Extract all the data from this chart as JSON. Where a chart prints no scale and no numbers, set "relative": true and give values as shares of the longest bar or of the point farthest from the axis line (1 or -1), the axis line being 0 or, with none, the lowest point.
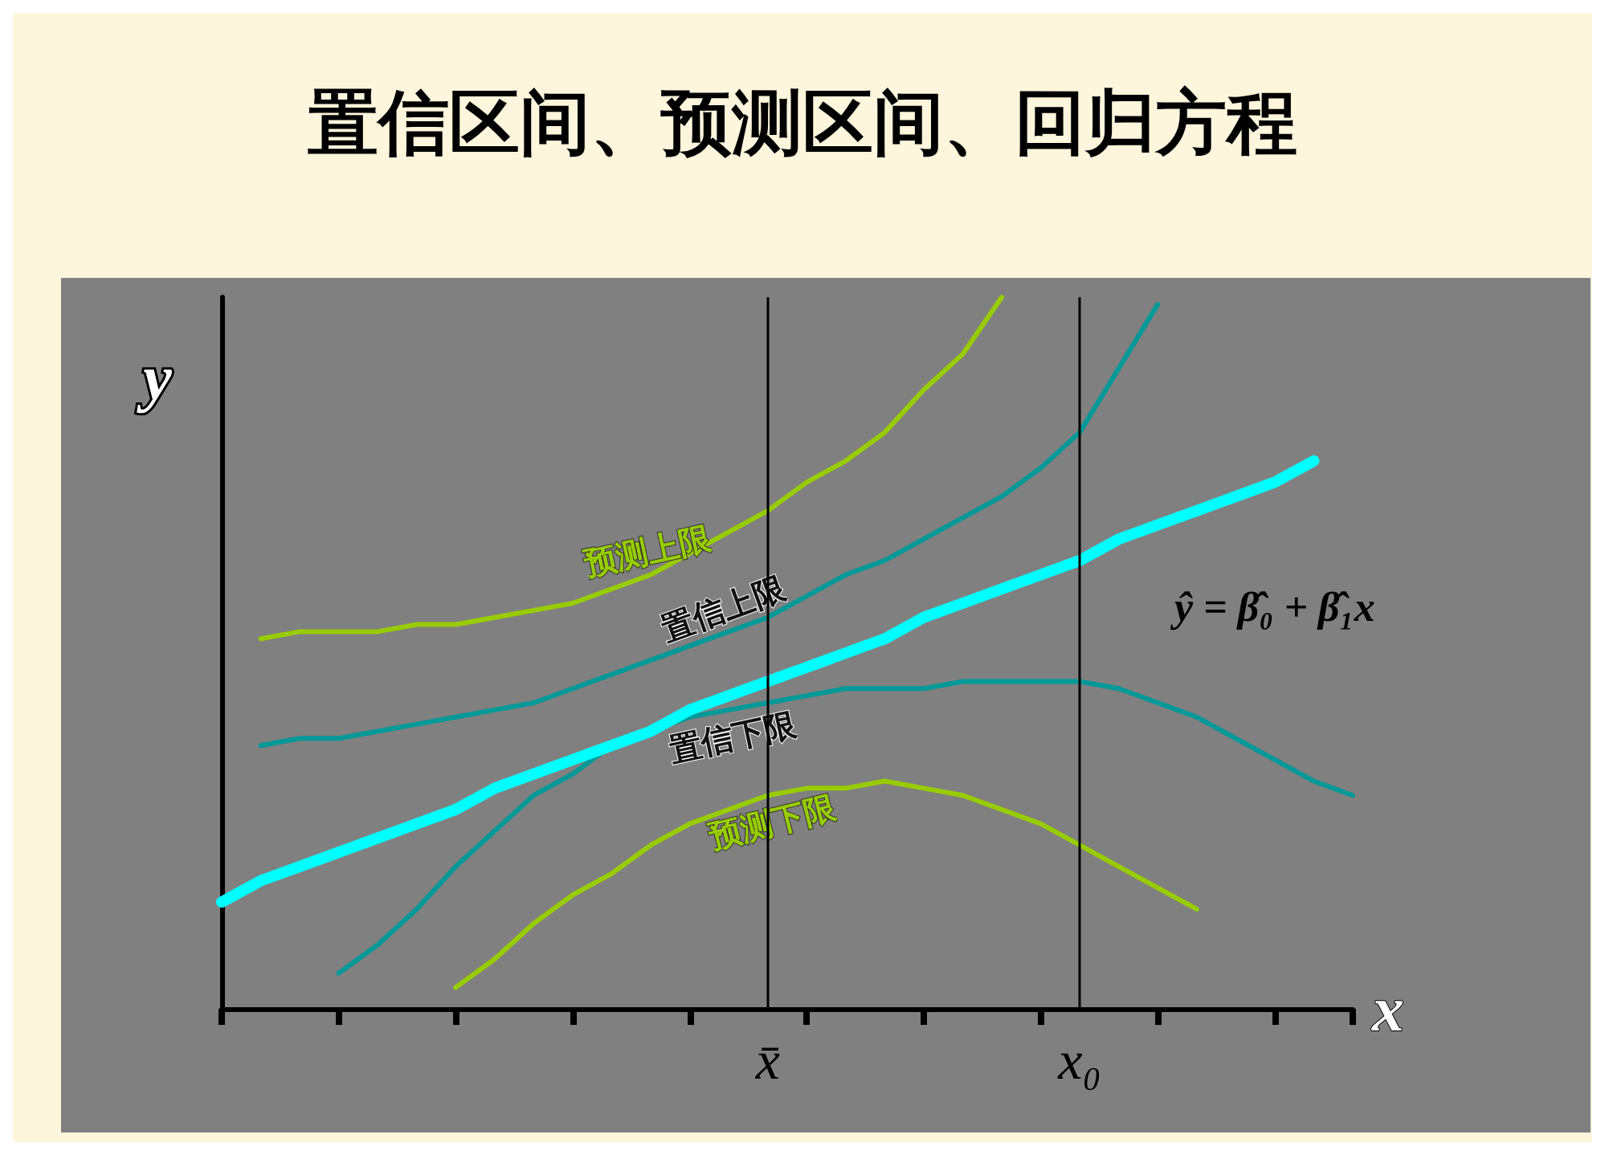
{
  "chart_data": {
    "type": "line",
    "title": "置信区间、预测区间、回归方程",
    "xlabel": "x",
    "ylabel": "y",
    "relative": true,
    "legend": false,
    "grid": false,
    "marker": "none",
    "line_style": "solid",
    "categories": [
      null,
      null,
      null,
      null,
      null,
      null,
      null,
      null,
      null,
      null,
      null,
      null,
      null,
      null,
      "x̄",
      null,
      null,
      null,
      null,
      null,
      null,
      null,
      "x₀",
      null,
      null,
      null,
      null,
      null,
      null,
      null
    ],
    "series": [
      {
        "name": "ŷ = β̂₀ + β̂₁x",
        "color": "#00ffff",
        "values": [
          0.15,
          0.18,
          0.2,
          0.22,
          0.24,
          0.26,
          0.28,
          0.31,
          0.33,
          0.35,
          0.37,
          0.39,
          0.42,
          0.44,
          0.46,
          0.48,
          0.5,
          0.52,
          0.55,
          0.57,
          0.59,
          0.61,
          0.63,
          0.66,
          0.68,
          0.7,
          0.72,
          0.74,
          0.77,
          null
        ]
      },
      {
        "name": "预测上限",
        "color": "#99cc00",
        "values": [
          null,
          0.52,
          0.53,
          0.53,
          0.53,
          0.54,
          0.54,
          0.55,
          0.56,
          0.57,
          0.59,
          0.61,
          0.64,
          0.67,
          0.7,
          0.74,
          0.77,
          0.81,
          0.87,
          0.92,
          1,
          null,
          null,
          null,
          null,
          null,
          null,
          null,
          null,
          null
        ]
      },
      {
        "name": "置信上限",
        "color": "#009999",
        "values": [
          null,
          0.37,
          0.38,
          0.38,
          0.39,
          0.4,
          0.41,
          0.42,
          0.43,
          0.45,
          0.47,
          0.49,
          0.51,
          0.53,
          0.55,
          0.58,
          0.61,
          0.63,
          0.66,
          0.69,
          0.72,
          0.76,
          0.81,
          0.9,
          0.99,
          null,
          null,
          null,
          null,
          null
        ]
      },
      {
        "name": "置信下限",
        "color": "#009999",
        "values": [
          null,
          null,
          null,
          0.05,
          0.09,
          0.14,
          0.2,
          0.25,
          0.3,
          0.33,
          0.37,
          0.39,
          0.41,
          0.42,
          0.43,
          0.44,
          0.45,
          0.45,
          0.45,
          0.46,
          0.46,
          0.46,
          0.46,
          0.45,
          0.43,
          0.41,
          0.38,
          0.35,
          0.32,
          0.3
        ]
      },
      {
        "name": "预测下限",
        "color": "#99cc00",
        "values": [
          null,
          null,
          null,
          null,
          null,
          null,
          0.03,
          0.07,
          0.12,
          0.16,
          0.19,
          0.23,
          0.26,
          0.28,
          0.3,
          0.31,
          0.31,
          0.32,
          0.31,
          0.3,
          0.28,
          0.26,
          0.23,
          0.2,
          0.17,
          0.14,
          null,
          null,
          null,
          null
        ]
      }
    ],
    "ref_lines": [
      {
        "axis": "x",
        "value": "x̄",
        "color": "#000000"
      },
      {
        "axis": "x",
        "value": "x₀",
        "color": "#000000"
      }
    ]
  }
}
